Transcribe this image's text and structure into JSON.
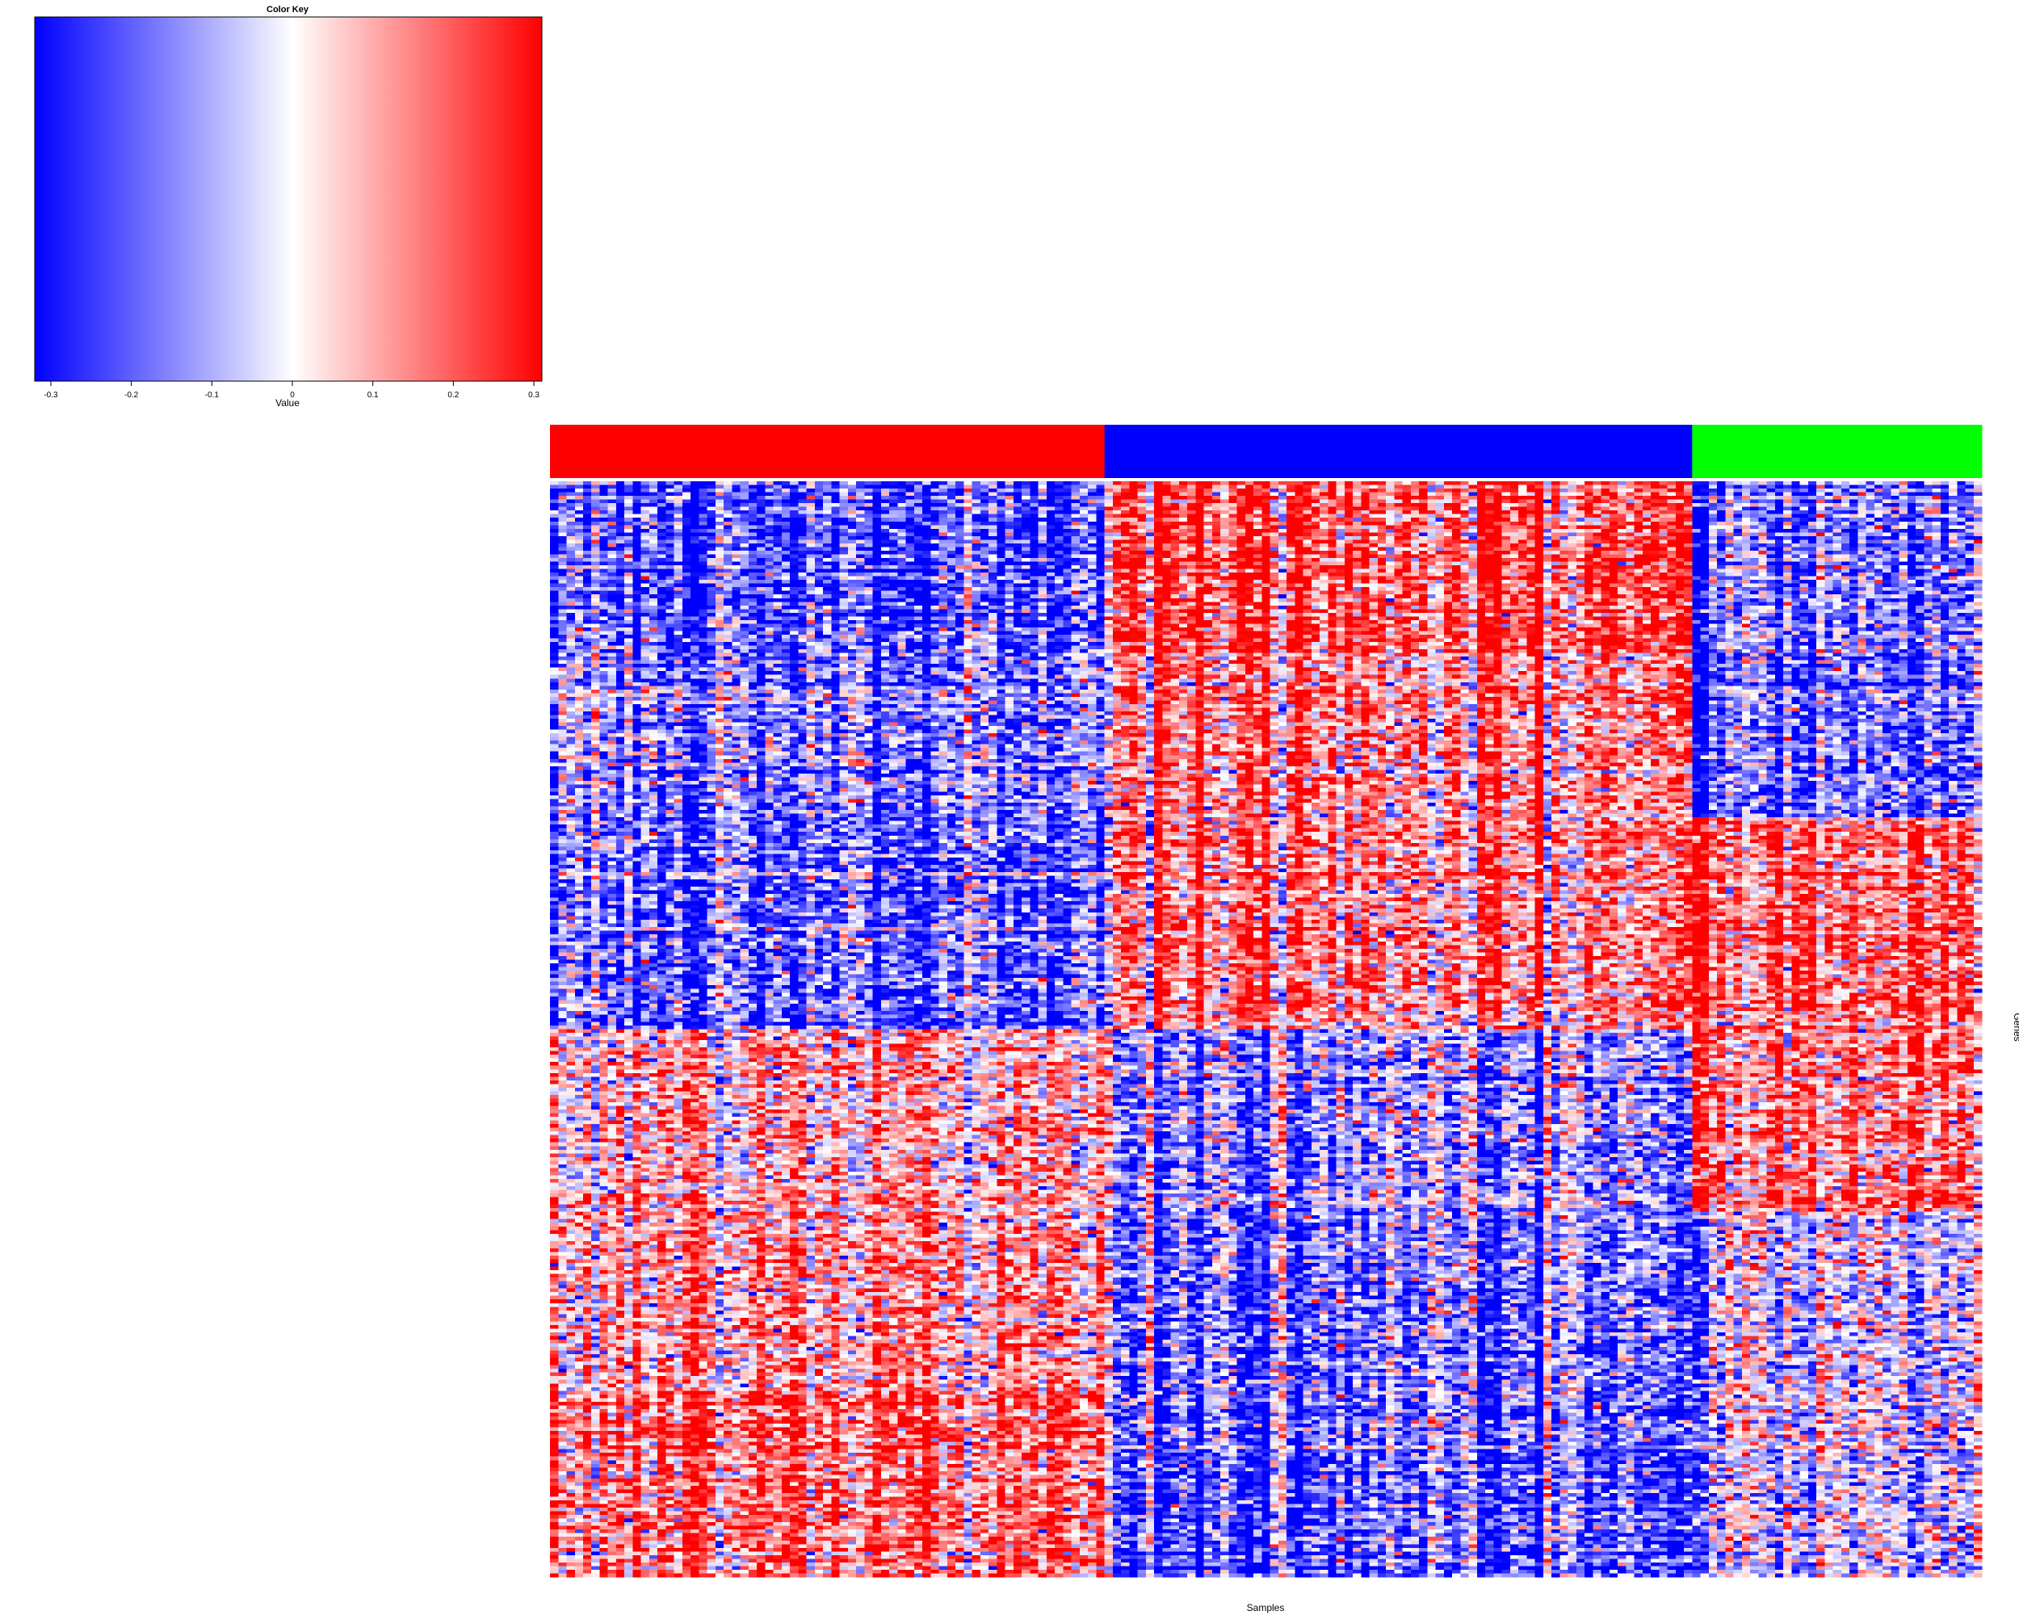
{
  "chart_data": {
    "type": "heatmap",
    "color_key": {
      "title": "Color Key",
      "xlabel": "Value",
      "range": [
        -0.32,
        0.31
      ],
      "ticks": [
        -0.3,
        -0.2,
        -0.1,
        0,
        0.1,
        0.2,
        0.3
      ],
      "tick_labels": [
        "-0.3",
        "-0.2",
        "-0.1",
        "0",
        "0.1",
        "0.2",
        "0.3"
      ],
      "low_color": "#0000ff",
      "mid_color": "#ffffff",
      "high_color": "#ff0000"
    },
    "xlabel": "Samples",
    "ylabel": "Genes",
    "sample_groups": [
      {
        "color": "#ff0000",
        "n_samples": 67
      },
      {
        "color": "#0000ff",
        "n_samples": 71
      },
      {
        "color": "#00ff00",
        "n_samples": 35
      }
    ],
    "n_genes": 300,
    "gene_clusters": [
      {
        "rows": 47,
        "group_means": [
          -0.22,
          0.22,
          -0.16
        ]
      },
      {
        "rows": 45,
        "group_means": [
          -0.16,
          0.13,
          -0.2
        ]
      },
      {
        "rows": 58,
        "group_means": [
          -0.2,
          0.14,
          0.19
        ]
      },
      {
        "rows": 50,
        "group_means": [
          0.08,
          -0.12,
          0.15
        ]
      },
      {
        "rows": 50,
        "group_means": [
          0.12,
          -0.16,
          -0.04
        ]
      },
      {
        "rows": 50,
        "group_means": [
          0.18,
          -0.2,
          -0.06
        ]
      }
    ]
  }
}
